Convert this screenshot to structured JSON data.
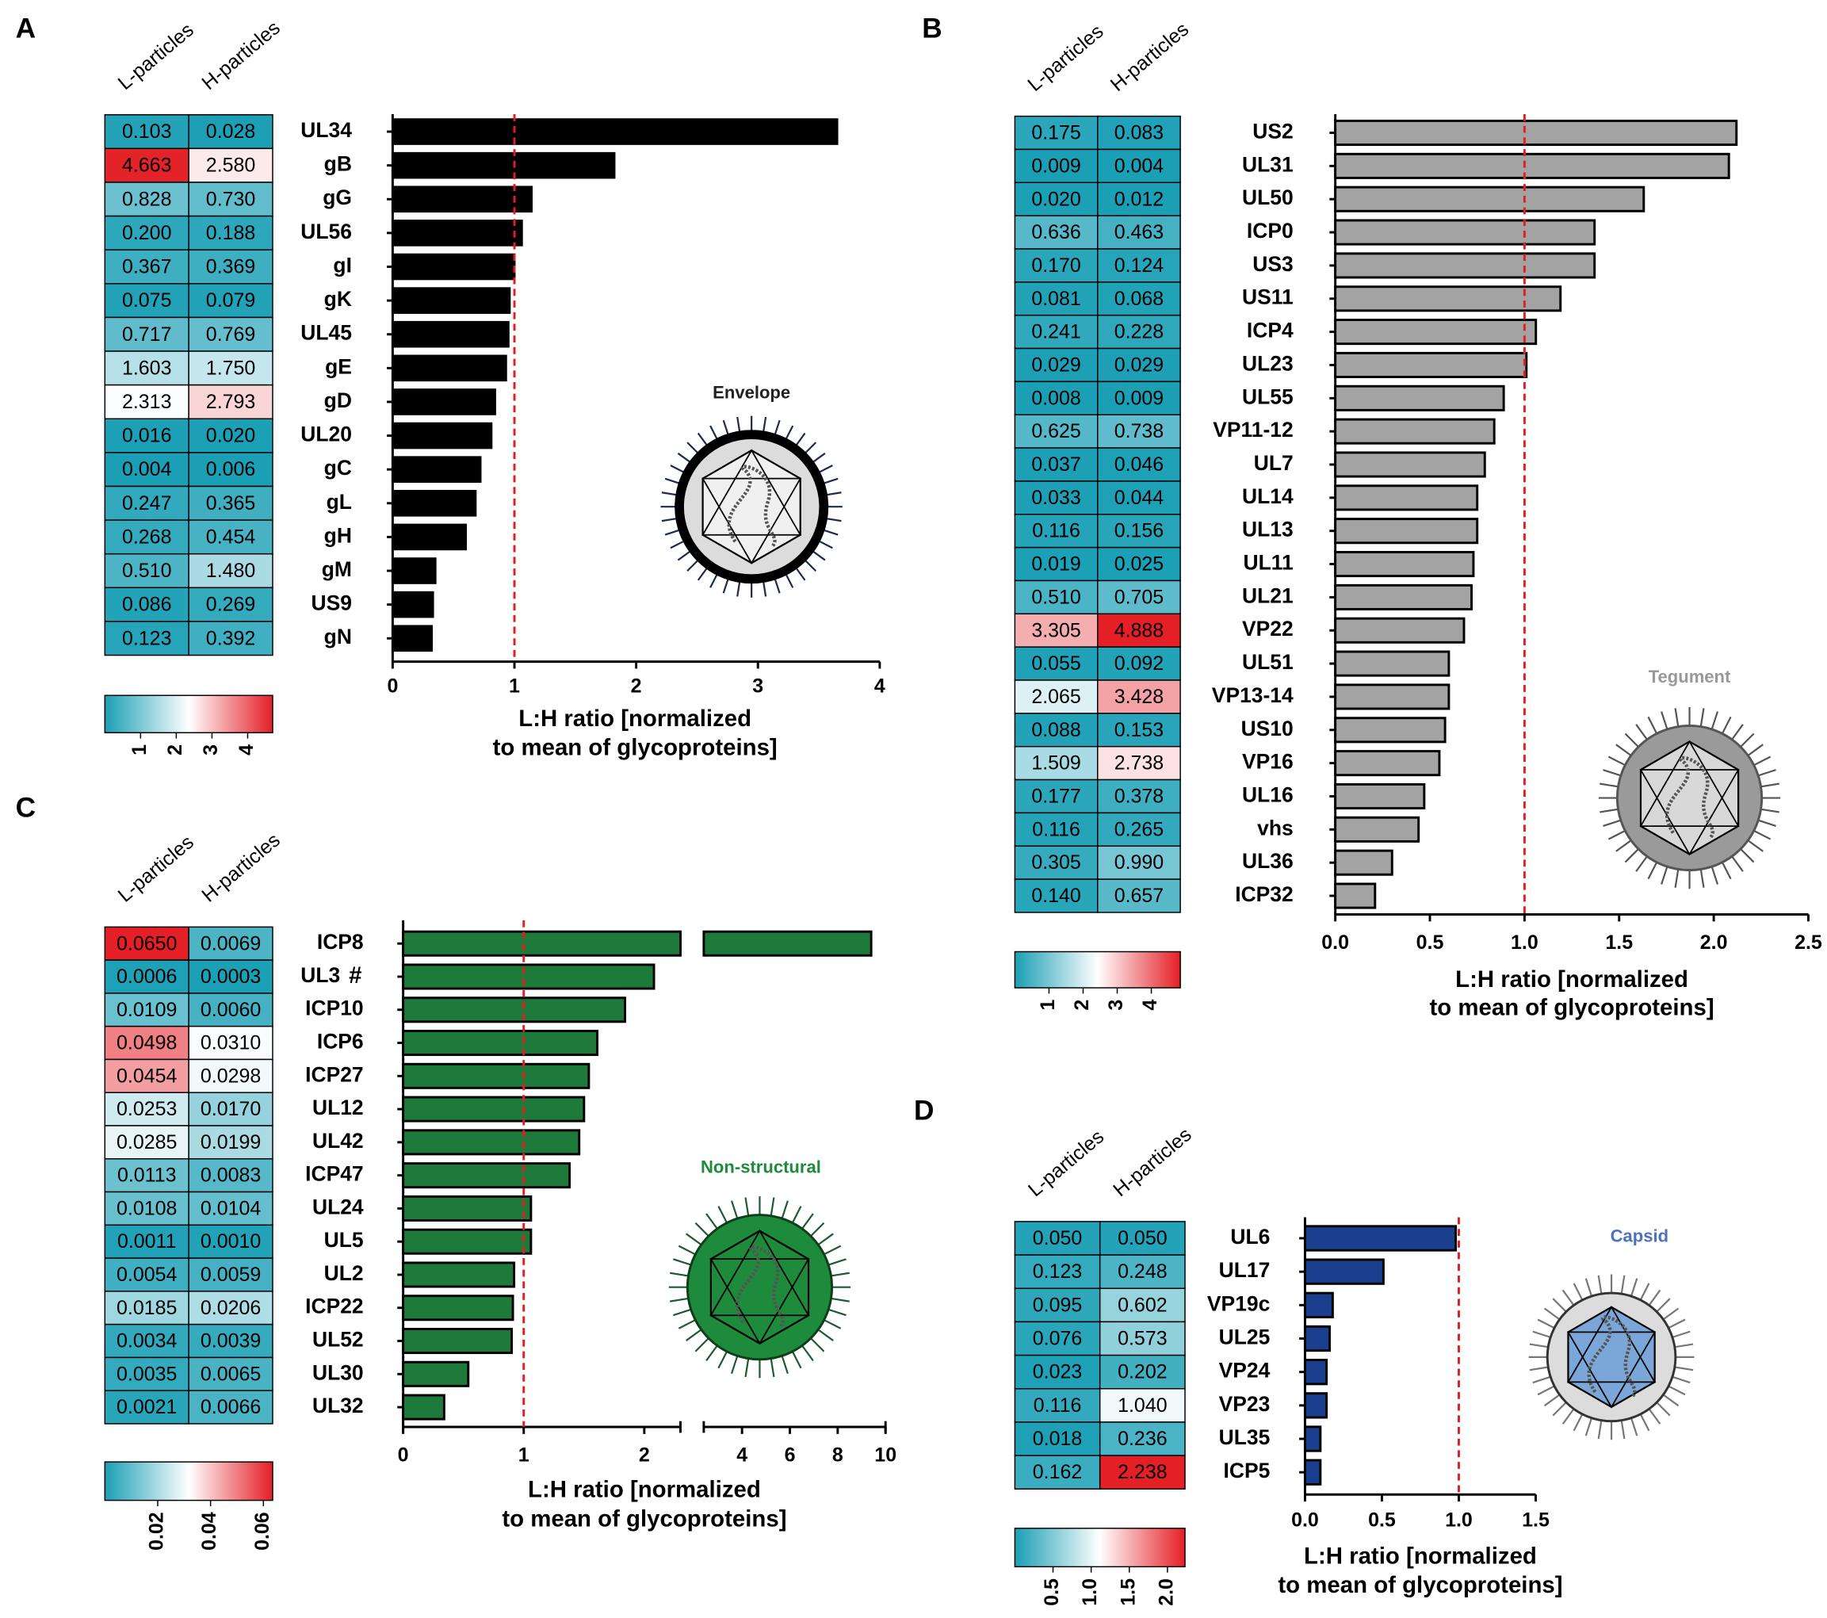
{
  "chart_data": [
    {
      "type": "bar",
      "panel": "A",
      "categories": [
        "UL34",
        "gB",
        "gG",
        "UL56",
        "gI",
        "gK",
        "UL45",
        "gE",
        "gD",
        "UL20",
        "gC",
        "gL",
        "gH",
        "gM",
        "US9",
        "gN"
      ],
      "values": [
        3.65,
        1.82,
        1.14,
        1.06,
        1.0,
        0.96,
        0.95,
        0.93,
        0.84,
        0.81,
        0.72,
        0.68,
        0.6,
        0.35,
        0.33,
        0.32
      ],
      "color": "#000000",
      "xlim": [
        0,
        4
      ],
      "xticks": [
        0,
        1,
        2,
        3,
        4
      ],
      "refline": 1,
      "xlabel": [
        "L:H ratio [normalized",
        "to mean of glycoproteins]"
      ],
      "inset": {
        "label": "Envelope",
        "color": "#222222"
      },
      "heatmap": {
        "columns": [
          "L-particles",
          "H-particles"
        ],
        "values": [
          [
            0.103,
            4.663,
            0.828,
            0.2,
            0.367,
            0.075,
            0.717,
            1.603,
            2.313,
            0.016,
            0.004,
            0.247,
            0.268,
            0.51,
            0.086,
            0.123
          ],
          [
            0.028,
            2.58,
            0.73,
            0.188,
            0.369,
            0.079,
            0.769,
            1.75,
            2.793,
            0.02,
            0.006,
            0.365,
            0.454,
            1.48,
            0.269,
            0.392
          ]
        ],
        "value_labels": [
          [
            "0.103",
            "4.663",
            "0.828",
            "0.200",
            "0.367",
            "0.075",
            "0.717",
            "1.603",
            "2.313",
            "0.016",
            "0.004",
            "0.247",
            "0.268",
            "0.510",
            "0.086",
            "0.123"
          ],
          [
            "0.028",
            "2.580",
            "0.730",
            "0.188",
            "0.369",
            "0.079",
            "0.769",
            "1.750",
            "2.793",
            "0.020",
            "0.006",
            "0.365",
            "0.454",
            "1.480",
            "0.269",
            "0.392"
          ]
        ],
        "clim": [
          0,
          4.7
        ],
        "cticks": [
          1,
          2,
          3,
          4
        ],
        "colormap": [
          "#1a9fb5",
          "#ffffff",
          "#e41f26"
        ]
      }
    },
    {
      "type": "bar",
      "panel": "B",
      "categories": [
        "US2",
        "UL31",
        "UL50",
        "ICP0",
        "US3",
        "US11",
        "ICP4",
        "UL23",
        "UL55",
        "VP11-12",
        "UL7",
        "UL14",
        "UL13",
        "UL11",
        "UL21",
        "VP22",
        "UL51",
        "VP13-14",
        "US10",
        "VP16",
        "UL16",
        "vhs",
        "UL36",
        "ICP32"
      ],
      "values": [
        2.12,
        2.08,
        1.63,
        1.37,
        1.37,
        1.19,
        1.06,
        1.01,
        0.89,
        0.84,
        0.79,
        0.75,
        0.75,
        0.73,
        0.72,
        0.68,
        0.6,
        0.6,
        0.58,
        0.55,
        0.47,
        0.44,
        0.3,
        0.21
      ],
      "color": "#a3a3a3",
      "xlim": [
        0,
        2.5
      ],
      "xticks": [
        {
          "value": 0,
          "label": "0.0"
        },
        {
          "value": 0.5,
          "label": "0.5"
        },
        {
          "value": 1,
          "label": "1.0"
        },
        {
          "value": 1.5,
          "label": "1.5"
        },
        {
          "value": 2,
          "label": "2.0"
        },
        {
          "value": 2.5,
          "label": "2.5"
        }
      ],
      "refline": 1,
      "xlabel": [
        "L:H ratio [normalized",
        "to mean of glycoproteins]"
      ],
      "inset": {
        "label": "Tegument",
        "color": "#999999"
      },
      "heatmap": {
        "columns": [
          "L-particles",
          "H-particles"
        ],
        "values": [
          [
            0.175,
            0.009,
            0.02,
            0.636,
            0.17,
            0.081,
            0.241,
            0.029,
            0.008,
            0.625,
            0.037,
            0.033,
            0.116,
            0.019,
            0.51,
            3.305,
            0.055,
            2.065,
            0.088,
            1.509,
            0.177,
            0.116,
            0.305,
            0.14
          ],
          [
            0.083,
            0.004,
            0.012,
            0.463,
            0.124,
            0.068,
            0.228,
            0.029,
            0.009,
            0.738,
            0.046,
            0.044,
            0.156,
            0.025,
            0.705,
            4.888,
            0.092,
            3.428,
            0.153,
            2.738,
            0.378,
            0.265,
            0.99,
            0.657
          ]
        ],
        "value_labels": [
          [
            "0.175",
            "0.009",
            "0.020",
            "0.636",
            "0.170",
            "0.081",
            "0.241",
            "0.029",
            "0.008",
            "0.625",
            "0.037",
            "0.033",
            "0.116",
            "0.019",
            "0.510",
            "3.305",
            "0.055",
            "2.065",
            "0.088",
            "1.509",
            "0.177",
            "0.116",
            "0.305",
            "0.140"
          ],
          [
            "0.083",
            "0.004",
            "0.012",
            "0.463",
            "0.124",
            "0.068",
            "0.228",
            "0.029",
            "0.009",
            "0.738",
            "0.046",
            "0.044",
            "0.156",
            "0.025",
            "0.705",
            "4.888",
            "0.092",
            "3.428",
            "0.153",
            "2.738",
            "0.378",
            "0.265",
            "0.990",
            "0.657"
          ]
        ],
        "clim": [
          0,
          4.85
        ],
        "cticks": [
          1,
          2,
          3,
          4
        ],
        "colormap": [
          "#1a9fb5",
          "#ffffff",
          "#e41f26"
        ]
      }
    },
    {
      "type": "bar",
      "panel": "C",
      "categories": [
        "ICP8",
        "UL3",
        "ICP10",
        "ICP6",
        "ICP27",
        "UL12",
        "UL42",
        "ICP47",
        "UL24",
        "UL5",
        "UL2",
        "ICP22",
        "UL52",
        "UL30",
        "UL32"
      ],
      "values": [
        9.4,
        2.08,
        1.84,
        1.61,
        1.54,
        1.5,
        1.46,
        1.38,
        1.06,
        1.06,
        0.92,
        0.91,
        0.9,
        0.54,
        0.34
      ],
      "color": "#1e7a3a",
      "xlim": [
        0,
        10
      ],
      "xbreak": [
        2.3,
        2.4
      ],
      "xticks": [
        0,
        1,
        2,
        4,
        6,
        8,
        10
      ],
      "refline": 1,
      "annotations": [
        {
          "category": "UL3",
          "text": "#"
        }
      ],
      "xlabel": [
        "L:H ratio [normalized",
        "to mean of glycoproteins]"
      ],
      "inset": {
        "label": "Non-structural",
        "color": "#1e8a3c"
      },
      "heatmap": {
        "columns": [
          "L-particles",
          "H-particles"
        ],
        "values": [
          [
            0.065,
            0.0006,
            0.0109,
            0.0498,
            0.0454,
            0.0253,
            0.0285,
            0.0113,
            0.0108,
            0.0011,
            0.0054,
            0.0185,
            0.0034,
            0.0035,
            0.0021
          ],
          [
            0.0069,
            0.0003,
            0.006,
            0.031,
            0.0298,
            0.017,
            0.0199,
            0.0083,
            0.0104,
            0.001,
            0.0059,
            0.0206,
            0.0039,
            0.0065,
            0.0066
          ]
        ],
        "value_labels": [
          [
            "0.0650",
            "0.0006",
            "0.0109",
            "0.0498",
            "0.0454",
            "0.0253",
            "0.0285",
            "0.0113",
            "0.0108",
            "0.0011",
            "0.0054",
            "0.0185",
            "0.0034",
            "0.0035",
            "0.0021"
          ],
          [
            "0.0069",
            "0.0003",
            "0.0060",
            "0.0310",
            "0.0298",
            "0.0170",
            "0.0199",
            "0.0083",
            "0.0104",
            "0.0010",
            "0.0059",
            "0.0206",
            "0.0039",
            "0.0065",
            "0.0066"
          ]
        ],
        "clim": [
          0,
          0.0635
        ],
        "cticks": [
          0.02,
          0.04,
          0.06
        ],
        "colormap": [
          "#1a9fb5",
          "#ffffff",
          "#e41f26"
        ]
      }
    },
    {
      "type": "bar",
      "panel": "D",
      "categories": [
        "UL6",
        "UL17",
        "VP19c",
        "UL25",
        "VP24",
        "VP23",
        "UL35",
        "ICP5"
      ],
      "values": [
        0.98,
        0.51,
        0.18,
        0.16,
        0.14,
        0.14,
        0.1,
        0.1
      ],
      "color": "#1a3f8f",
      "xlim": [
        0,
        1.5
      ],
      "xticks": [
        {
          "value": 0,
          "label": "0.0"
        },
        {
          "value": 0.5,
          "label": "0.5"
        },
        {
          "value": 1,
          "label": "1.0"
        },
        {
          "value": 1.5,
          "label": "1.5"
        }
      ],
      "refline": 1,
      "xlabel": [
        "L:H ratio [normalized",
        "to mean of glycoproteins]"
      ],
      "inset": {
        "label": "Capsid",
        "color": "#4a72c0"
      },
      "heatmap": {
        "columns": [
          "L-particles",
          "H-particles"
        ],
        "values": [
          [
            0.05,
            0.123,
            0.095,
            0.076,
            0.023,
            0.116,
            0.018,
            0.162
          ],
          [
            0.05,
            0.248,
            0.602,
            0.573,
            0.202,
            1.04,
            0.236,
            2.238
          ]
        ],
        "value_labels": [
          [
            "0.050",
            "0.123",
            "0.095",
            "0.076",
            "0.023",
            "0.116",
            "0.018",
            "0.162"
          ],
          [
            "0.050",
            "0.248",
            "0.602",
            "0.573",
            "0.202",
            "1.040",
            "0.236",
            "2.238"
          ]
        ],
        "clim": [
          0,
          2.23
        ],
        "cticks": [
          {
            "value": 0.5,
            "label": "0.5"
          },
          {
            "value": 1,
            "label": "1.0"
          },
          {
            "value": 1.5,
            "label": "1.5"
          },
          {
            "value": 2,
            "label": "2.0"
          }
        ],
        "colormap": [
          "#1a9fb5",
          "#ffffff",
          "#e41f26"
        ]
      }
    }
  ]
}
